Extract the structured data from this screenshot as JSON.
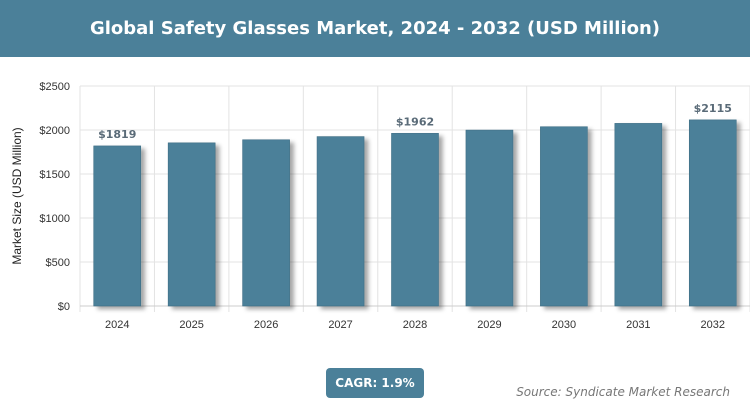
{
  "header": {
    "title": "Global Safety Glasses Market, 2024 - 2032 (USD Million)"
  },
  "chart_data": {
    "type": "bar",
    "title": "Global Safety Glasses Market, 2024 - 2032 (USD Million)",
    "ylabel": "Market Size (USD Million)",
    "xlabel": "",
    "categories": [
      "2024",
      "2025",
      "2026",
      "2027",
      "2028",
      "2029",
      "2030",
      "2031",
      "2032"
    ],
    "values": [
      1819,
      1854,
      1889,
      1925,
      1962,
      1999,
      2037,
      2075,
      2115
    ],
    "data_labels": {
      "2024": "$1819",
      "2028": "$1962",
      "2032": "$2115"
    },
    "ylim": [
      0,
      2500
    ],
    "yticks": [
      "$0",
      "$500",
      "$1000",
      "$1500",
      "$2000",
      "$2500"
    ],
    "grid": true,
    "bar_color": "#4b8099"
  },
  "footer": {
    "cagr": "CAGR: 1.9%",
    "source": "Source: Syndicate Market Research"
  }
}
